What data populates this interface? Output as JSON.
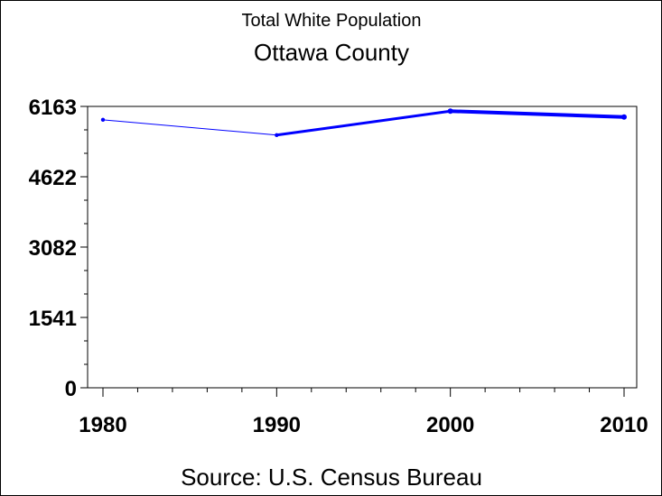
{
  "chart_data": {
    "type": "line",
    "title": "Total White Population",
    "subtitle": "Ottawa County",
    "source": "Source: U.S. Census Bureau",
    "x": [
      1980,
      1990,
      2000,
      2010
    ],
    "x_tick_labels": [
      "1980",
      "1990",
      "2000",
      "2010"
    ],
    "y_tick_labels": [
      "6163",
      "4622",
      "3082",
      "1541",
      "0"
    ],
    "y_tick_values": [
      6163,
      4622,
      3082,
      1541,
      0
    ],
    "series": [
      {
        "values": [
          5870,
          5535,
          6060,
          5930
        ],
        "color": "#0000ff"
      }
    ],
    "xlim": [
      1980,
      2010
    ],
    "ylim": [
      0,
      6163
    ],
    "grid": false
  }
}
